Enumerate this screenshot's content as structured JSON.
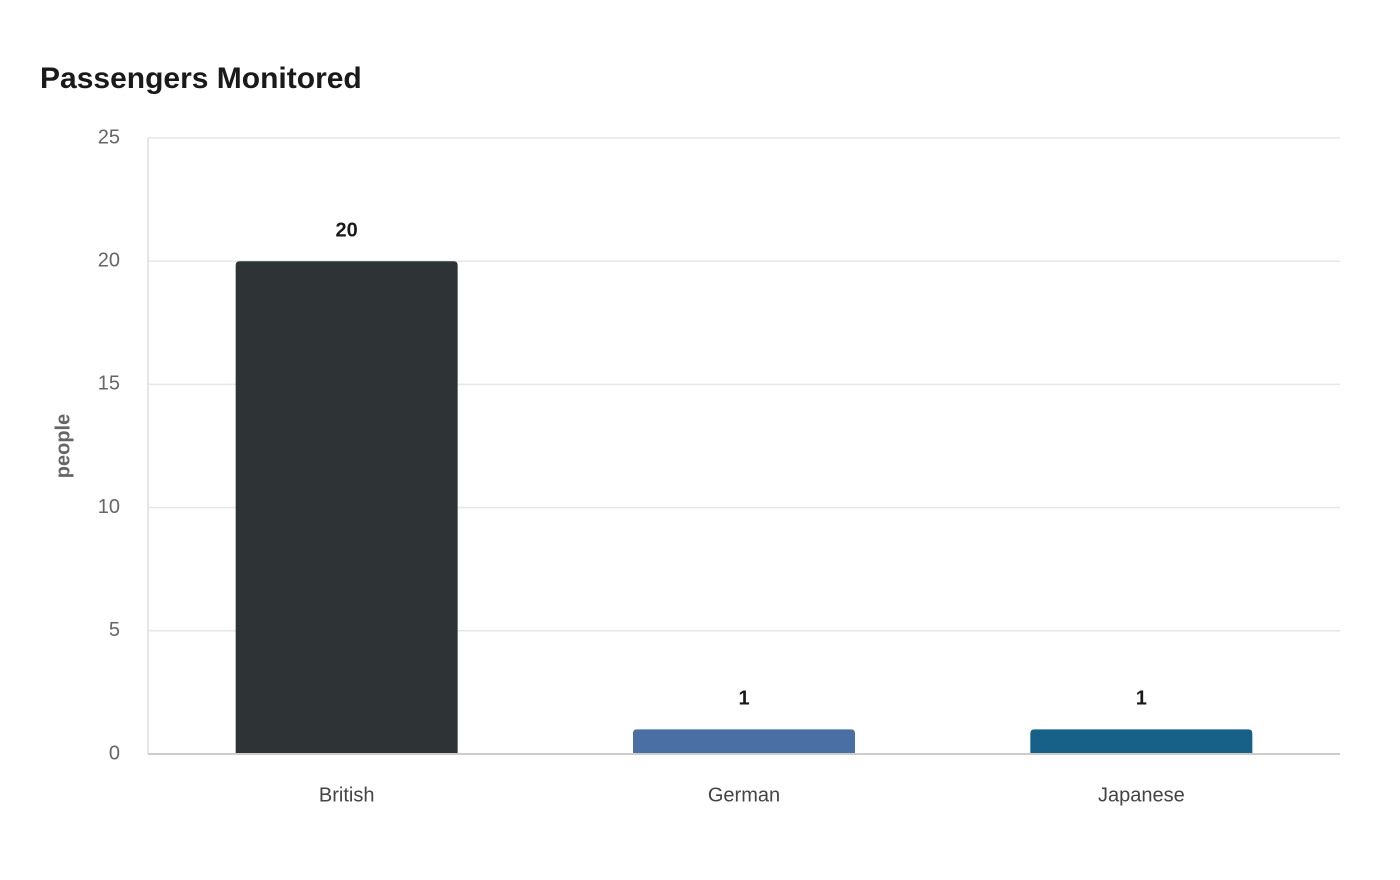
{
  "chart_data": {
    "type": "bar",
    "title": "Passengers Monitored",
    "y_label": "people",
    "categories": [
      "British",
      "German",
      "Japanese"
    ],
    "values": [
      20,
      1,
      1
    ],
    "colors": [
      "#2e3436",
      "#4a6fa5",
      "#176087"
    ],
    "ylim": [
      0,
      25
    ],
    "yticks": [
      0,
      5,
      10,
      15,
      20,
      25
    ],
    "grid": true,
    "show_value_labels": true
  }
}
